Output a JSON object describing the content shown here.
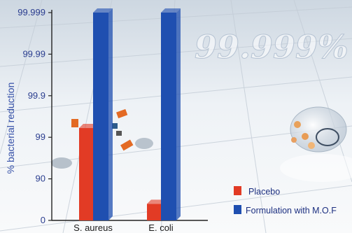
{
  "chart_data": {
    "type": "bar",
    "title": "",
    "xlabel": "",
    "ylabel": "% bacterial reduction",
    "y_scale": "log-reduction",
    "yticks": [
      "0",
      "90",
      "99",
      "99.9",
      "99.99",
      "99.999"
    ],
    "categories": [
      "S. aureus",
      "E. coli"
    ],
    "series": [
      {
        "name": "Placebo",
        "color": "#e23b25",
        "values": [
          99.4,
          60
        ]
      },
      {
        "name": "Formulation with M.O.F",
        "color": "#1f4fb0",
        "values": [
          99.999,
          99.999
        ]
      }
    ],
    "legend_position": "bottom-right",
    "annotation": "99.999%",
    "grid": false
  }
}
